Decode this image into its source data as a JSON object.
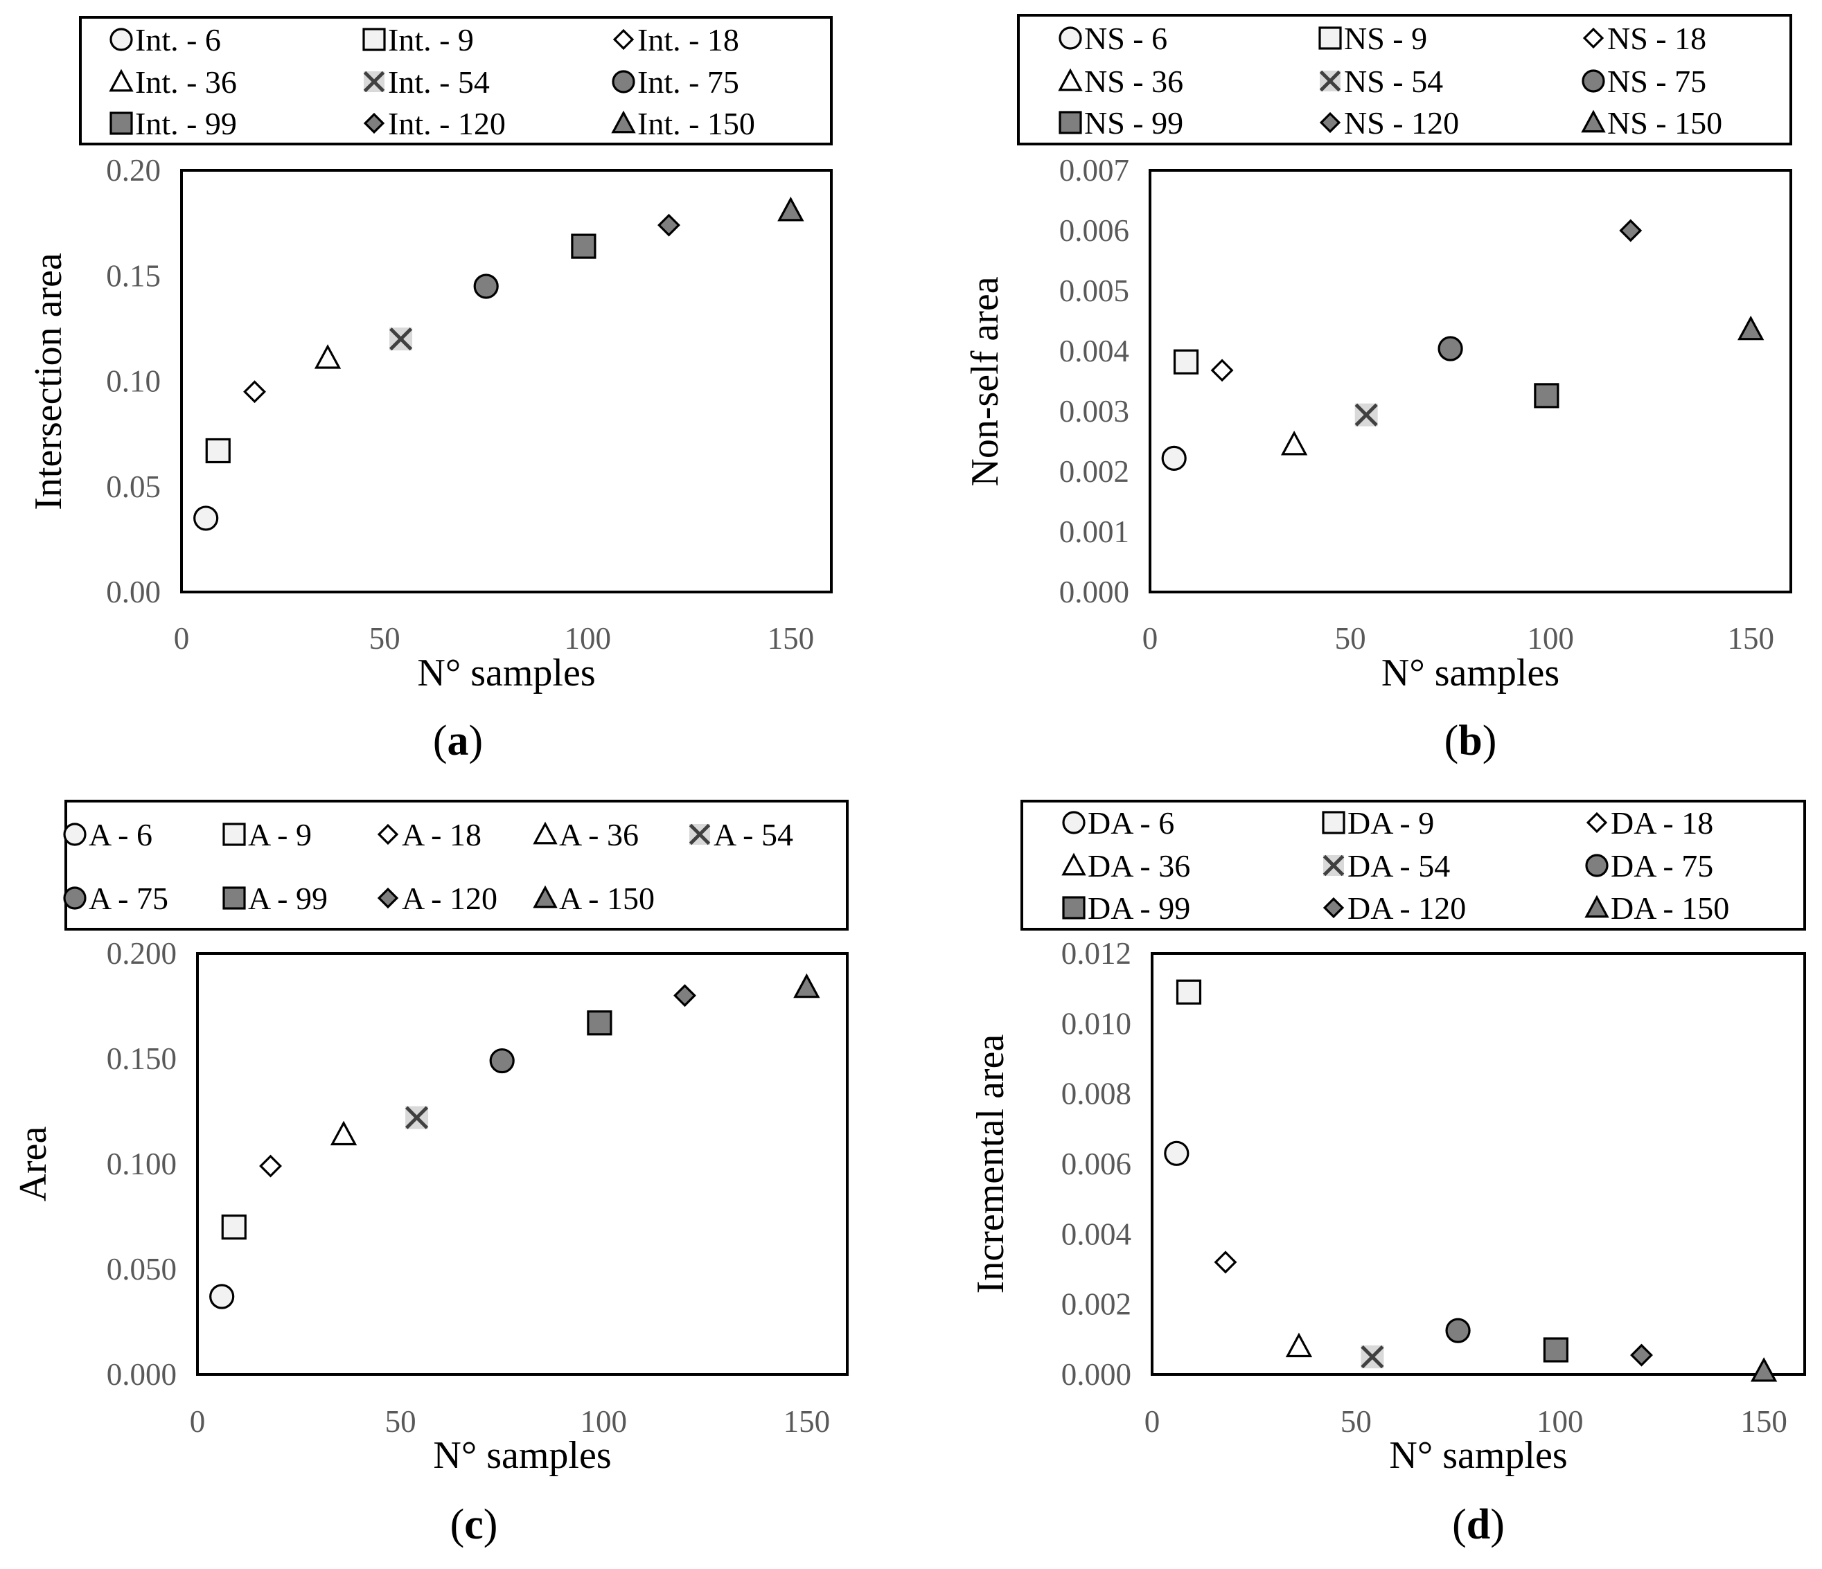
{
  "figure": {
    "background": "#ffffff",
    "tick_color": "#595959",
    "frame_color": "#000000"
  },
  "marker_fills": {
    "6": "#f2f2f2",
    "9": "#f2f2f2",
    "18": "#ffffff",
    "36": "#ffffff",
    "54": "#d9d9d9",
    "75": "#7f7f7f",
    "99": "#7f7f7f",
    "120": "#7f7f7f",
    "150": "#7f7f7f"
  },
  "chart_data": [
    {
      "id": "a",
      "type": "scatter",
      "panel_label": "a",
      "xlabel": "N° samples",
      "ylabel": "Intersection area",
      "xlim": [
        0,
        160
      ],
      "ylim": [
        0.0,
        0.2
      ],
      "xticks": [
        "0",
        "50",
        "100",
        "150"
      ],
      "yticks": [
        "0.00",
        "0.05",
        "0.10",
        "0.15",
        "0.20"
      ],
      "legend_position": "top",
      "series": [
        {
          "name": "Int. - 6",
          "marker": "circle",
          "x": 6,
          "y": 0.035
        },
        {
          "name": "Int. - 9",
          "marker": "square",
          "x": 9,
          "y": 0.067
        },
        {
          "name": "Int. - 18",
          "marker": "diamond",
          "x": 18,
          "y": 0.095
        },
        {
          "name": "Int. - 36",
          "marker": "triangle",
          "x": 36,
          "y": 0.111
        },
        {
          "name": "Int. - 54",
          "marker": "cross",
          "x": 54,
          "y": 0.12
        },
        {
          "name": "Int. - 75",
          "marker": "circle",
          "x": 75,
          "y": 0.145
        },
        {
          "name": "Int. - 99",
          "marker": "square",
          "x": 99,
          "y": 0.164
        },
        {
          "name": "Int. - 120",
          "marker": "diamond",
          "x": 120,
          "y": 0.174
        },
        {
          "name": "Int. - 150",
          "marker": "triangle",
          "x": 150,
          "y": 0.181
        }
      ]
    },
    {
      "id": "b",
      "type": "scatter",
      "panel_label": "b",
      "xlabel": "N° samples",
      "ylabel": "Non-self area",
      "xlim": [
        0,
        160
      ],
      "ylim": [
        0.0,
        0.007
      ],
      "xticks": [
        "0",
        "50",
        "100",
        "150"
      ],
      "yticks": [
        "0.000",
        "0.001",
        "0.002",
        "0.003",
        "0.004",
        "0.005",
        "0.006",
        "0.007"
      ],
      "legend_position": "top",
      "series": [
        {
          "name": "NS - 6",
          "marker": "circle",
          "x": 6,
          "y": 0.00222
        },
        {
          "name": "NS - 9",
          "marker": "square",
          "x": 9,
          "y": 0.00382
        },
        {
          "name": "NS - 18",
          "marker": "diamond",
          "x": 18,
          "y": 0.00368
        },
        {
          "name": "NS - 36",
          "marker": "triangle",
          "x": 36,
          "y": 0.00245
        },
        {
          "name": "NS - 54",
          "marker": "cross",
          "x": 54,
          "y": 0.00294
        },
        {
          "name": "NS - 75",
          "marker": "circle",
          "x": 75,
          "y": 0.00404
        },
        {
          "name": "NS - 99",
          "marker": "square",
          "x": 99,
          "y": 0.00326
        },
        {
          "name": "NS - 120",
          "marker": "diamond",
          "x": 120,
          "y": 0.006
        },
        {
          "name": "NS - 150",
          "marker": "triangle",
          "x": 150,
          "y": 0.00436
        }
      ]
    },
    {
      "id": "c",
      "type": "scatter",
      "panel_label": "c",
      "xlabel": "N° samples",
      "ylabel": "Area",
      "xlim": [
        0,
        160
      ],
      "ylim": [
        0.0,
        0.2
      ],
      "xticks": [
        "0",
        "50",
        "100",
        "150"
      ],
      "yticks": [
        "0.000",
        "0.050",
        "0.100",
        "0.150",
        "0.200"
      ],
      "legend_position": "top",
      "series": [
        {
          "name": "A - 6",
          "marker": "circle",
          "x": 6,
          "y": 0.037
        },
        {
          "name": "A - 9",
          "marker": "square",
          "x": 9,
          "y": 0.07
        },
        {
          "name": "A - 18",
          "marker": "diamond",
          "x": 18,
          "y": 0.099
        },
        {
          "name": "A - 36",
          "marker": "triangle",
          "x": 36,
          "y": 0.114
        },
        {
          "name": "A - 54",
          "marker": "cross",
          "x": 54,
          "y": 0.122
        },
        {
          "name": "A - 75",
          "marker": "circle",
          "x": 75,
          "y": 0.149
        },
        {
          "name": "A - 99",
          "marker": "square",
          "x": 99,
          "y": 0.167
        },
        {
          "name": "A - 120",
          "marker": "diamond",
          "x": 120,
          "y": 0.18
        },
        {
          "name": "A - 150",
          "marker": "triangle",
          "x": 150,
          "y": 0.184
        }
      ]
    },
    {
      "id": "d",
      "type": "scatter",
      "panel_label": "d",
      "xlabel": "N° samples",
      "ylabel": "Incremental area",
      "xlim": [
        0,
        160
      ],
      "ylim": [
        0.0,
        0.012
      ],
      "xticks": [
        "0",
        "50",
        "100",
        "150"
      ],
      "yticks": [
        "0.000",
        "0.002",
        "0.004",
        "0.006",
        "0.008",
        "0.010",
        "0.012"
      ],
      "legend_position": "top",
      "series": [
        {
          "name": "DA - 6",
          "marker": "circle",
          "x": 6,
          "y": 0.0063
        },
        {
          "name": "DA - 9",
          "marker": "square",
          "x": 9,
          "y": 0.0109
        },
        {
          "name": "DA - 18",
          "marker": "diamond",
          "x": 18,
          "y": 0.0032
        },
        {
          "name": "DA - 36",
          "marker": "triangle",
          "x": 36,
          "y": 0.0008
        },
        {
          "name": "DA - 54",
          "marker": "cross",
          "x": 54,
          "y": 0.0005
        },
        {
          "name": "DA - 75",
          "marker": "circle",
          "x": 75,
          "y": 0.00125
        },
        {
          "name": "DA - 99",
          "marker": "square",
          "x": 99,
          "y": 0.0007
        },
        {
          "name": "DA - 120",
          "marker": "diamond",
          "x": 120,
          "y": 0.00055
        },
        {
          "name": "DA - 150",
          "marker": "triangle",
          "x": 150,
          "y": 0.0001
        }
      ]
    }
  ]
}
